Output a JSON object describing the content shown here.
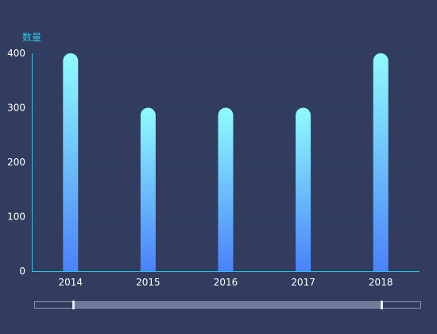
{
  "chart_data": {
    "type": "bar",
    "categories": [
      "2014",
      "2015",
      "2016",
      "2017",
      "2018"
    ],
    "values": [
      400,
      300,
      300,
      300,
      400
    ],
    "ylabel": "数量",
    "ylim": [
      0,
      400
    ],
    "yticks": [
      0,
      100,
      200,
      300,
      400
    ],
    "grid": true,
    "bar_gradient": [
      "#4a82fb",
      "#8ffcfd"
    ],
    "axis_color": "#29c5e6",
    "grid_color": "#2f4273"
  },
  "zoom_slider": {
    "start_percent": 10,
    "end_percent": 90
  }
}
